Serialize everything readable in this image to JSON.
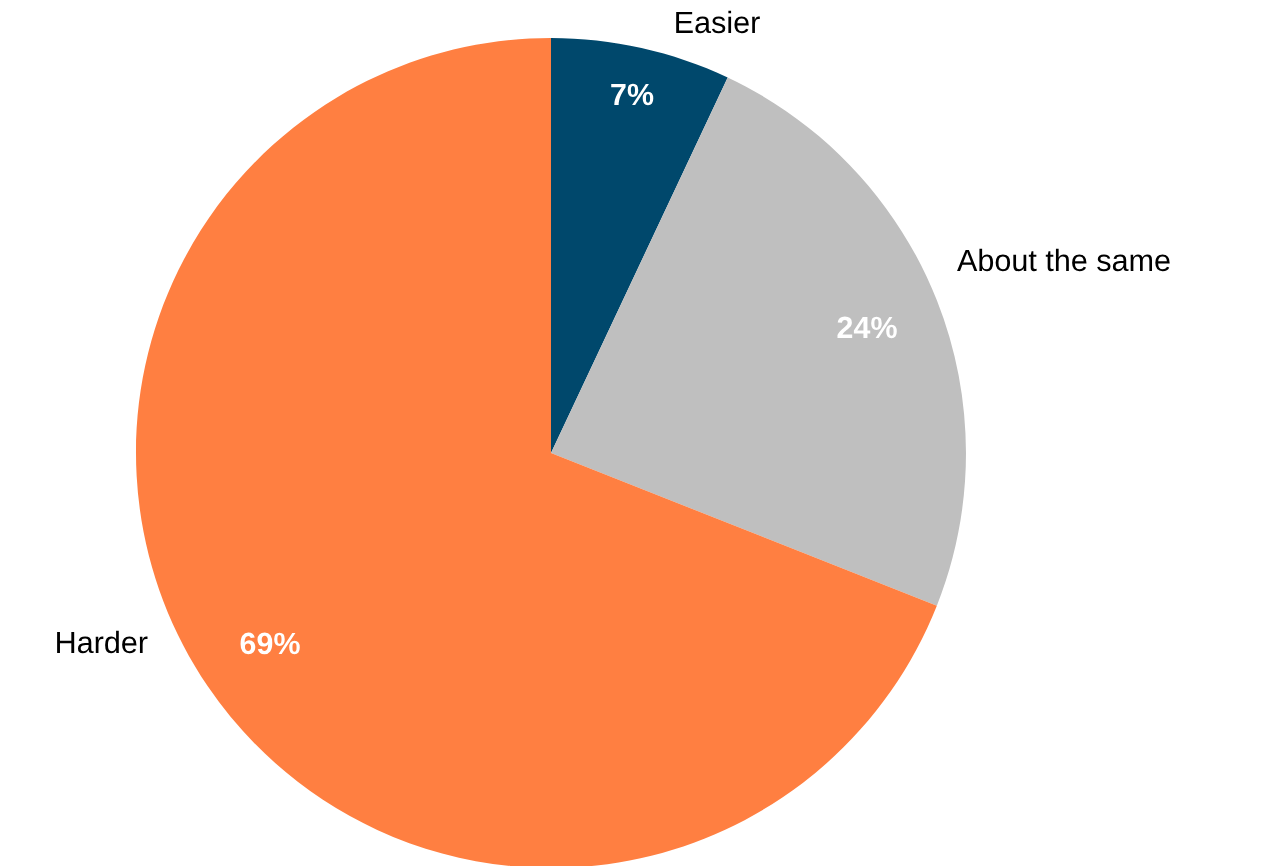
{
  "chart_data": {
    "type": "pie",
    "categories": [
      "Easier",
      "About the same",
      "Harder"
    ],
    "values": [
      7,
      24,
      69
    ],
    "colors": [
      "#00486c",
      "#bfbfbf",
      "#ff7f41"
    ],
    "value_labels": [
      "7%",
      "24%",
      "69%"
    ],
    "legend": false
  }
}
